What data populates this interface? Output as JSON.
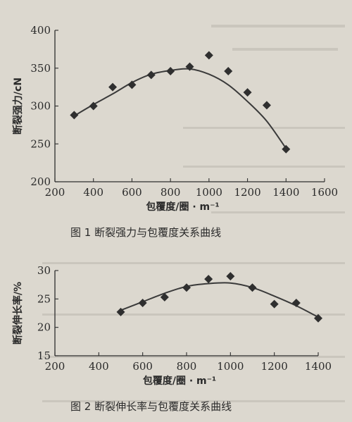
{
  "chart_data": [
    {
      "type": "scatter",
      "title": "",
      "caption": "图 1   断裂强力与包覆度关系曲线",
      "xlabel": "包覆度/圈 · m⁻¹",
      "ylabel": "断裂强力/cN",
      "xlim": [
        200,
        1600
      ],
      "ylim": [
        200,
        400
      ],
      "xticks": [
        200,
        400,
        600,
        800,
        1000,
        1200,
        1400,
        1600
      ],
      "yticks": [
        200,
        250,
        300,
        350,
        400
      ],
      "points": {
        "x": [
          300,
          400,
          500,
          600,
          700,
          800,
          900,
          1000,
          1100,
          1200,
          1300,
          1400
        ],
        "y": [
          288,
          300,
          325,
          328,
          341,
          346,
          352,
          367,
          346,
          318,
          301,
          243
        ]
      },
      "fit_curve": {
        "x": [
          300,
          400,
          500,
          600,
          700,
          800,
          900,
          1000,
          1100,
          1200,
          1300,
          1400
        ],
        "y": [
          287,
          302,
          316,
          331,
          342,
          347,
          349,
          342,
          328,
          306,
          280,
          244
        ]
      },
      "marker": "diamond",
      "grid": false
    },
    {
      "type": "scatter",
      "title": "",
      "caption": "图 2   断裂伸长率与包覆度关系曲线",
      "xlabel": "包覆度/圈 · m⁻¹",
      "ylabel": "断裂伸长率/%",
      "xlim": [
        200,
        1400
      ],
      "ylim": [
        15,
        30
      ],
      "xticks": [
        200,
        400,
        600,
        800,
        1000,
        1200,
        1400
      ],
      "yticks": [
        15,
        20,
        25,
        30
      ],
      "points": {
        "x": [
          500,
          600,
          700,
          800,
          900,
          1000,
          1100,
          1200,
          1300,
          1400
        ],
        "y": [
          22.7,
          24.3,
          25.3,
          27.0,
          28.5,
          29.0,
          27.0,
          24.1,
          24.3,
          21.6
        ]
      },
      "fit_curve": {
        "x": [
          500,
          600,
          700,
          800,
          900,
          1000,
          1100,
          1200,
          1300,
          1400
        ],
        "y": [
          23.0,
          24.5,
          26.0,
          27.2,
          27.7,
          27.8,
          27.0,
          25.5,
          23.8,
          21.8
        ]
      },
      "marker": "diamond",
      "grid": false
    }
  ]
}
